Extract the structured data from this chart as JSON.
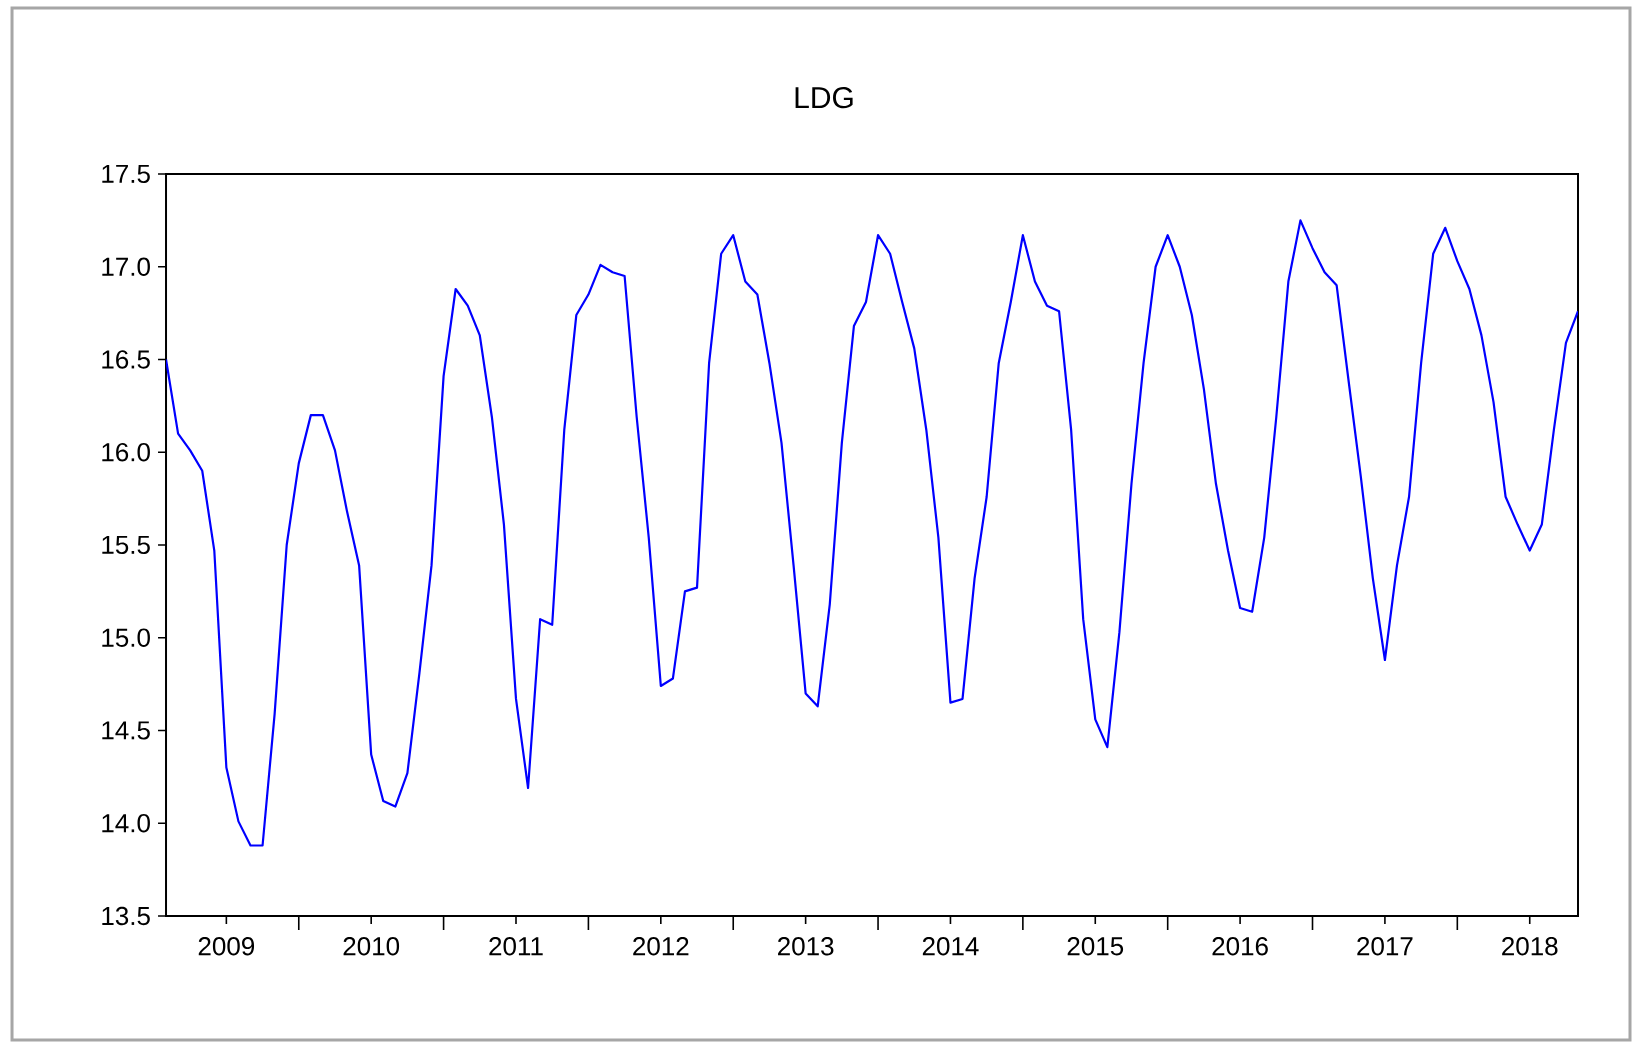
{
  "chart_data": {
    "type": "line",
    "title": "LDG",
    "x": [
      "2009-02",
      "2009-03",
      "2009-04",
      "2009-05",
      "2009-06",
      "2009-07",
      "2009-08",
      "2009-09",
      "2009-10",
      "2009-11",
      "2009-12",
      "2010-01",
      "2010-02",
      "2010-03",
      "2010-04",
      "2010-05",
      "2010-06",
      "2010-07",
      "2010-08",
      "2010-09",
      "2010-10",
      "2010-11",
      "2010-12",
      "2011-01",
      "2011-02",
      "2011-03",
      "2011-04",
      "2011-05",
      "2011-06",
      "2011-07",
      "2011-08",
      "2011-09",
      "2011-10",
      "2011-11",
      "2011-12",
      "2012-01",
      "2012-02",
      "2012-03",
      "2012-04",
      "2012-05",
      "2012-06",
      "2012-07",
      "2012-08",
      "2012-09",
      "2012-10",
      "2012-11",
      "2012-12",
      "2013-01",
      "2013-02",
      "2013-03",
      "2013-04",
      "2013-05",
      "2013-06",
      "2013-07",
      "2013-08",
      "2013-09",
      "2013-10",
      "2013-11",
      "2013-12",
      "2014-01",
      "2014-02",
      "2014-03",
      "2014-04",
      "2014-05",
      "2014-06",
      "2014-07",
      "2014-08",
      "2014-09",
      "2014-10",
      "2014-11",
      "2014-12",
      "2015-01",
      "2015-02",
      "2015-03",
      "2015-04",
      "2015-05",
      "2015-06",
      "2015-07",
      "2015-08",
      "2015-09",
      "2015-10",
      "2015-11",
      "2015-12",
      "2016-01",
      "2016-02",
      "2016-03",
      "2016-04",
      "2016-05",
      "2016-06",
      "2016-07",
      "2016-08",
      "2016-09",
      "2016-10",
      "2016-11",
      "2016-12",
      "2017-01",
      "2017-02",
      "2017-03",
      "2017-04",
      "2017-05",
      "2017-06",
      "2017-07",
      "2017-08",
      "2017-09",
      "2017-10",
      "2017-11",
      "2017-12",
      "2018-01",
      "2018-02",
      "2018-03",
      "2018-04",
      "2018-05",
      "2018-06",
      "2018-07",
      "2018-08",
      "2018-09",
      "2018-10",
      "2018-11"
    ],
    "series": [
      {
        "color": "#0000ff",
        "values": [
          16.5,
          16.1,
          16.01,
          15.9,
          15.47,
          14.3,
          14.01,
          13.88,
          13.88,
          14.59,
          15.5,
          15.94,
          16.2,
          16.2,
          16.01,
          15.68,
          15.39,
          14.37,
          14.12,
          14.09,
          14.27,
          14.81,
          15.39,
          16.41,
          16.88,
          16.79,
          16.63,
          16.19,
          15.61,
          14.67,
          14.19,
          15.1,
          15.07,
          16.12,
          16.74,
          16.85,
          17.01,
          16.97,
          16.95,
          16.19,
          15.54,
          14.74,
          14.78,
          15.25,
          15.27,
          16.48,
          17.07,
          17.17,
          16.92,
          16.85,
          16.48,
          16.05,
          15.39,
          14.7,
          14.63,
          15.18,
          16.05,
          16.68,
          16.81,
          17.17,
          17.07,
          16.81,
          16.56,
          16.12,
          15.54,
          14.65,
          14.67,
          15.32,
          15.76,
          16.48,
          16.81,
          17.17,
          16.92,
          16.79,
          16.76,
          16.12,
          15.1,
          14.56,
          14.41,
          15.03,
          15.83,
          16.48,
          17.0,
          17.17,
          17.0,
          16.74,
          16.34,
          15.83,
          15.47,
          15.16,
          15.14,
          15.54,
          16.19,
          16.92,
          17.25,
          17.1,
          16.97,
          16.9,
          16.38,
          15.87,
          15.32,
          14.88,
          15.39,
          15.76,
          16.48,
          17.07,
          17.21,
          17.03,
          16.88,
          16.63,
          16.27,
          15.76,
          15.61,
          15.47,
          15.61,
          16.12,
          16.59,
          16.76
        ]
      }
    ],
    "xlim": [
      "2009-02",
      "2018-11"
    ],
    "ylim": [
      13.5,
      17.5
    ],
    "yticks": [
      13.5,
      {
        "value": 14,
        "label": "14.0"
      },
      14.5,
      {
        "value": 15,
        "label": "15.0"
      },
      15.5,
      {
        "value": 16,
        "label": "16.0"
      },
      16.5,
      {
        "value": 17,
        "label": "17.0"
      },
      17.5
    ],
    "xticks": [
      {
        "value": "2009-07",
        "label": "2009"
      },
      {
        "value": "2010-01",
        "label": null
      },
      {
        "value": "2010-07",
        "label": "2010"
      },
      {
        "value": "2011-01",
        "label": null
      },
      {
        "value": "2011-07",
        "label": "2011"
      },
      {
        "value": "2012-01",
        "label": null
      },
      {
        "value": "2012-07",
        "label": "2012"
      },
      {
        "value": "2013-01",
        "label": null
      },
      {
        "value": "2013-07",
        "label": "2013"
      },
      {
        "value": "2014-01",
        "label": null
      },
      {
        "value": "2014-07",
        "label": "2014"
      },
      {
        "value": "2015-01",
        "label": null
      },
      {
        "value": "2015-07",
        "label": "2015"
      },
      {
        "value": "2016-01",
        "label": null
      },
      {
        "value": "2016-07",
        "label": "2016"
      },
      {
        "value": "2017-01",
        "label": null
      },
      {
        "value": "2017-07",
        "label": "2017"
      },
      {
        "value": "2018-01",
        "label": null
      },
      {
        "value": "2018-07",
        "label": "2018"
      }
    ]
  }
}
